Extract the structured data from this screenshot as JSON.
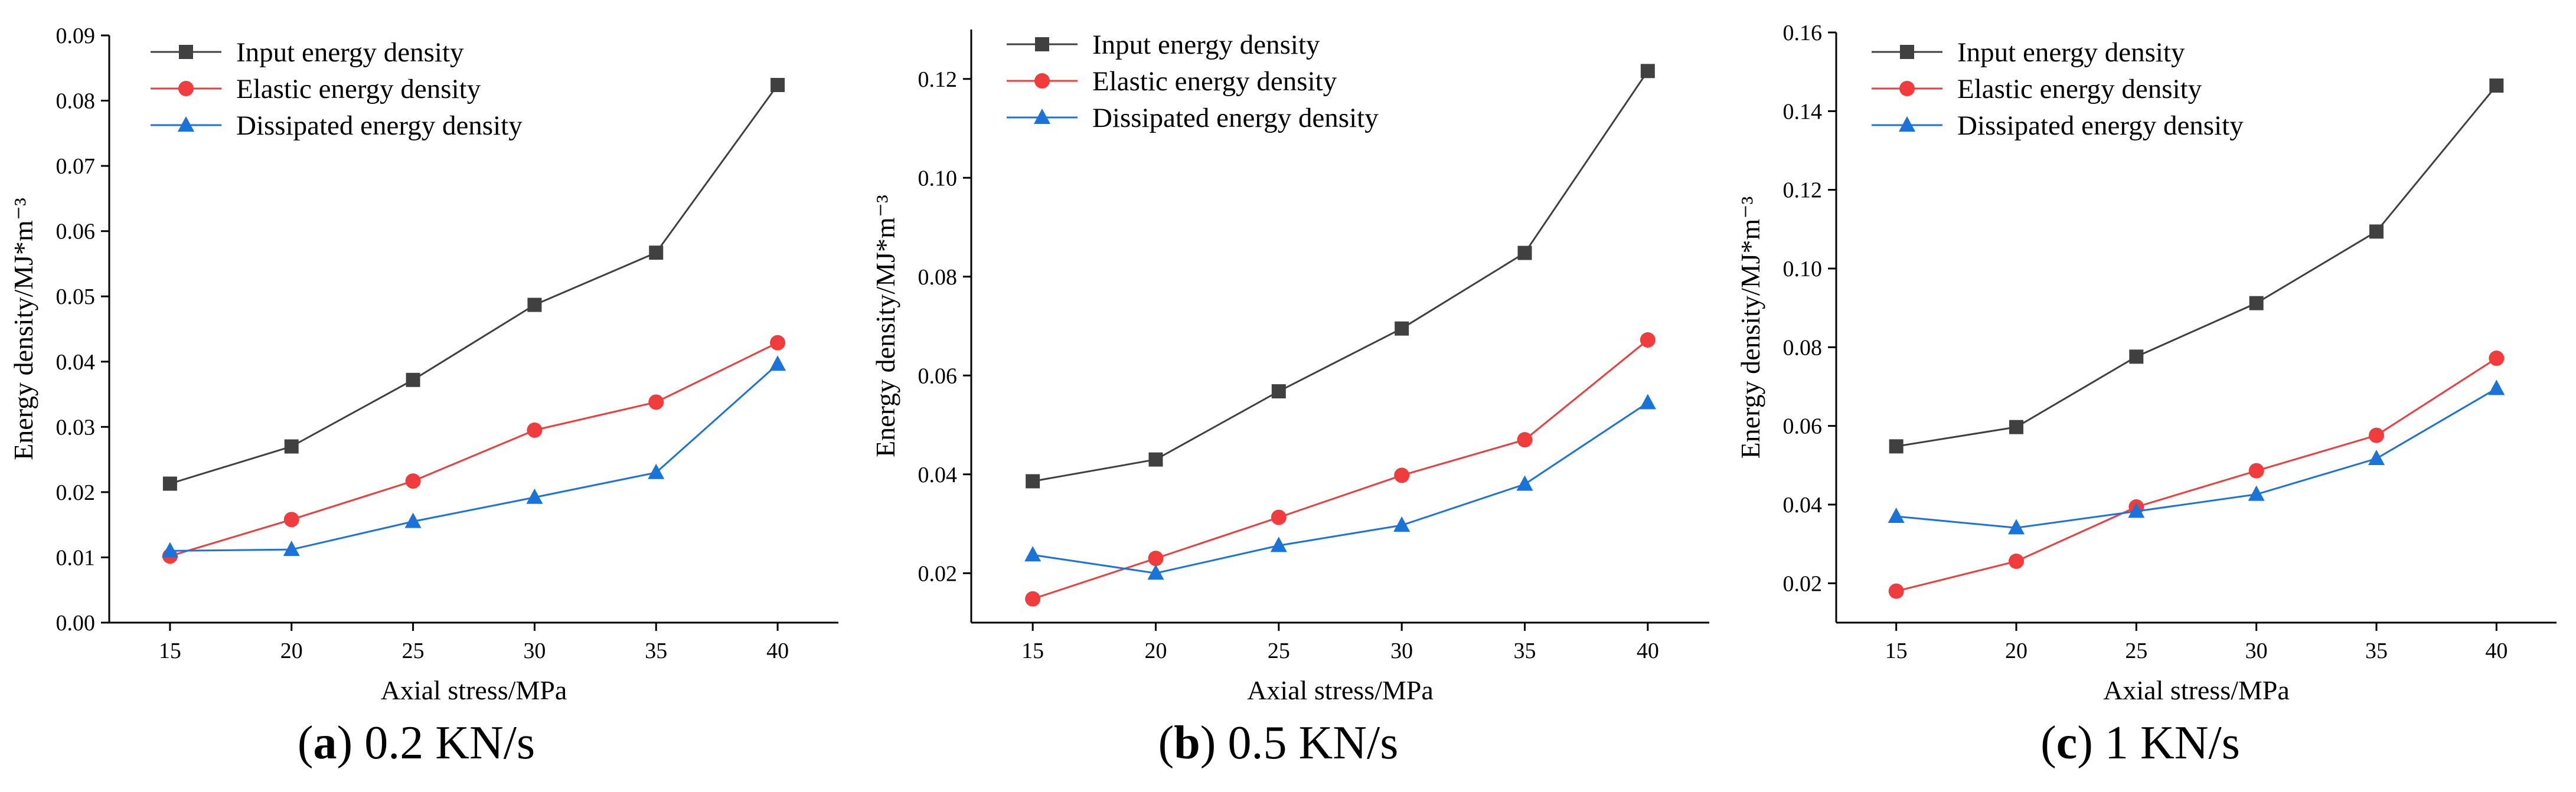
{
  "figure": {
    "legend": {
      "input": "Input energy density",
      "elastic": "Elastic energy density",
      "dissipated": "Dissipated energy density"
    },
    "colors": {
      "input": "#404040",
      "elastic": "#f03c3c",
      "dissipated": "#1a73d9",
      "axis": "#000000"
    },
    "markers": {
      "input": "square",
      "elastic": "circle",
      "dissipated": "triangle"
    }
  },
  "chart_data": [
    {
      "type": "line",
      "caption": {
        "open": "(",
        "letter": "a",
        "rest": ") 0.2 KN/s"
      },
      "xlabel": "Axial stress/MPa",
      "ylabel": "Energy density/MJ*m⁻³",
      "x": [
        15,
        20,
        25,
        30,
        35,
        40
      ],
      "xlim": [
        12.5,
        42.5
      ],
      "ylim": [
        0,
        0.09
      ],
      "yticks": [
        0.0,
        0.01,
        0.02,
        0.03,
        0.04,
        0.05,
        0.06,
        0.07,
        0.08,
        0.09
      ],
      "ytick_labels": [
        "0.00",
        "0.01",
        "0.02",
        "0.03",
        "0.04",
        "0.05",
        "0.06",
        "0.07",
        "0.08",
        "0.09"
      ],
      "grid": false,
      "legend_position": "top-left",
      "series": [
        {
          "name": "Input energy density",
          "key": "input",
          "values": [
            0.0213,
            0.027,
            0.0372,
            0.0487,
            0.0567,
            0.0824
          ]
        },
        {
          "name": "Elastic energy density",
          "key": "elastic",
          "values": [
            0.0102,
            0.0158,
            0.0217,
            0.0295,
            0.0338,
            0.0429
          ]
        },
        {
          "name": "Dissipated energy density",
          "key": "dissipated",
          "values": [
            0.011,
            0.0112,
            0.0155,
            0.0192,
            0.023,
            0.0396
          ]
        }
      ]
    },
    {
      "type": "line",
      "caption": {
        "open": "(",
        "letter": "b",
        "rest": ") 0.5 KN/s"
      },
      "xlabel": "Axial stress/MPa",
      "ylabel": "Energy density/MJ*m⁻³",
      "x": [
        15,
        20,
        25,
        30,
        35,
        40
      ],
      "xlim": [
        12.5,
        42.5
      ],
      "ylim": [
        0.01,
        0.13
      ],
      "yticks": [
        0.02,
        0.04,
        0.06,
        0.08,
        0.1,
        0.12
      ],
      "ytick_labels": [
        "0.02",
        "0.04",
        "0.06",
        "0.08",
        "0.10",
        "0.12"
      ],
      "grid": false,
      "legend_position": "top-left",
      "series": [
        {
          "name": "Input energy density",
          "key": "input",
          "values": [
            0.0386,
            0.043,
            0.0568,
            0.0695,
            0.0848,
            0.1216
          ]
        },
        {
          "name": "Elastic energy density",
          "key": "elastic",
          "values": [
            0.0148,
            0.023,
            0.0313,
            0.0398,
            0.047,
            0.0672
          ]
        },
        {
          "name": "Dissipated energy density",
          "key": "dissipated",
          "values": [
            0.0237,
            0.02,
            0.0256,
            0.0297,
            0.038,
            0.0545
          ]
        }
      ]
    },
    {
      "type": "line",
      "caption": {
        "open": "(",
        "letter": "c",
        "rest": ") 1 KN/s"
      },
      "xlabel": "Axial stress/MPa",
      "ylabel": "Energy density/MJ*m⁻³",
      "x": [
        15,
        20,
        25,
        30,
        35,
        40
      ],
      "xlim": [
        12.5,
        42.5
      ],
      "ylim": [
        0.01,
        0.16
      ],
      "yticks": [
        0.02,
        0.04,
        0.06,
        0.08,
        0.1,
        0.12,
        0.14,
        0.16
      ],
      "ytick_labels": [
        "0.02",
        "0.04",
        "0.06",
        "0.08",
        "0.10",
        "0.12",
        "0.14",
        "0.16"
      ],
      "grid": false,
      "legend_position": "top-left",
      "series": [
        {
          "name": "Input energy density",
          "key": "input",
          "values": [
            0.0548,
            0.0597,
            0.0776,
            0.0912,
            0.1094,
            0.1465
          ]
        },
        {
          "name": "Elastic energy density",
          "key": "elastic",
          "values": [
            0.018,
            0.0256,
            0.0394,
            0.0486,
            0.0576,
            0.0772
          ]
        },
        {
          "name": "Dissipated energy density",
          "key": "dissipated",
          "values": [
            0.037,
            0.0341,
            0.0383,
            0.0426,
            0.0517,
            0.0695
          ]
        }
      ]
    }
  ]
}
